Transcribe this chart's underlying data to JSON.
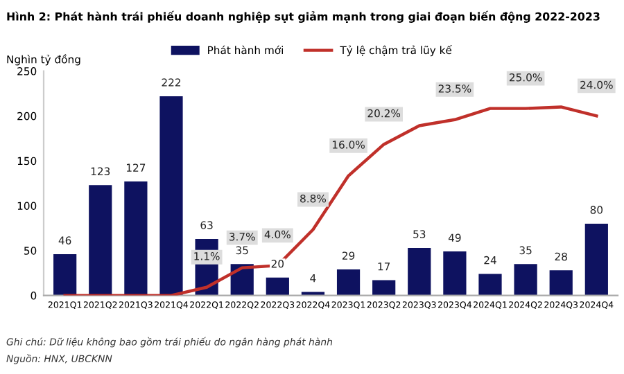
{
  "chart_data": {
    "type": "bar",
    "title": "Hình 2: Phát hành trái phiếu doanh nghiệp sụt giảm mạnh trong giai đoạn biến động 2022-2023",
    "ylabel": "Nghìn tỷ đồng",
    "categories": [
      "2021Q1",
      "2021Q2",
      "2021Q3",
      "2021Q4",
      "2022Q1",
      "2022Q2",
      "2022Q3",
      "2022Q4",
      "2023Q1",
      "2023Q2",
      "2023Q3",
      "2023Q4",
      "2024Q1",
      "2024Q2",
      "2024Q3",
      "2024Q4"
    ],
    "series": [
      {
        "name": "Phát hành mới",
        "color": "#0e1260",
        "values": [
          46,
          123,
          127,
          222,
          63,
          35,
          20,
          4,
          29,
          17,
          53,
          49,
          24,
          35,
          28,
          80
        ],
        "value_labels": [
          "46",
          "123",
          "127",
          "222",
          "63",
          "35",
          "20",
          "4",
          "29",
          "17",
          "53",
          "49",
          "24",
          "35",
          "28",
          "80"
        ]
      },
      {
        "name": "Tỷ lệ chậm trả lũy kế",
        "type": "line",
        "axis": "y2",
        "color": "#c0302a",
        "values": [
          0,
          0,
          0,
          0,
          1.1,
          3.7,
          4.0,
          8.8,
          16.0,
          20.2,
          22.7,
          23.5,
          25.0,
          25.0,
          25.2,
          24.0
        ],
        "value_labels": [
          null,
          null,
          null,
          null,
          "1.1%",
          "3.7%",
          "4.0%",
          "8.8%",
          "16.0%",
          "20.2%",
          null,
          "23.5%",
          null,
          "25.0%",
          null,
          "24.0%"
        ]
      }
    ],
    "ylim": [
      0,
      250
    ],
    "yticks": [
      0,
      50,
      100,
      150,
      200,
      250
    ],
    "y2lim": [
      0,
      30
    ],
    "legend": "top",
    "grid": false,
    "annotations": [
      "Ghi chú: Dữ liệu không bao gồm trái phiếu do ngân hàng phát hành",
      "Nguồn: HNX, UBCKNN"
    ]
  }
}
